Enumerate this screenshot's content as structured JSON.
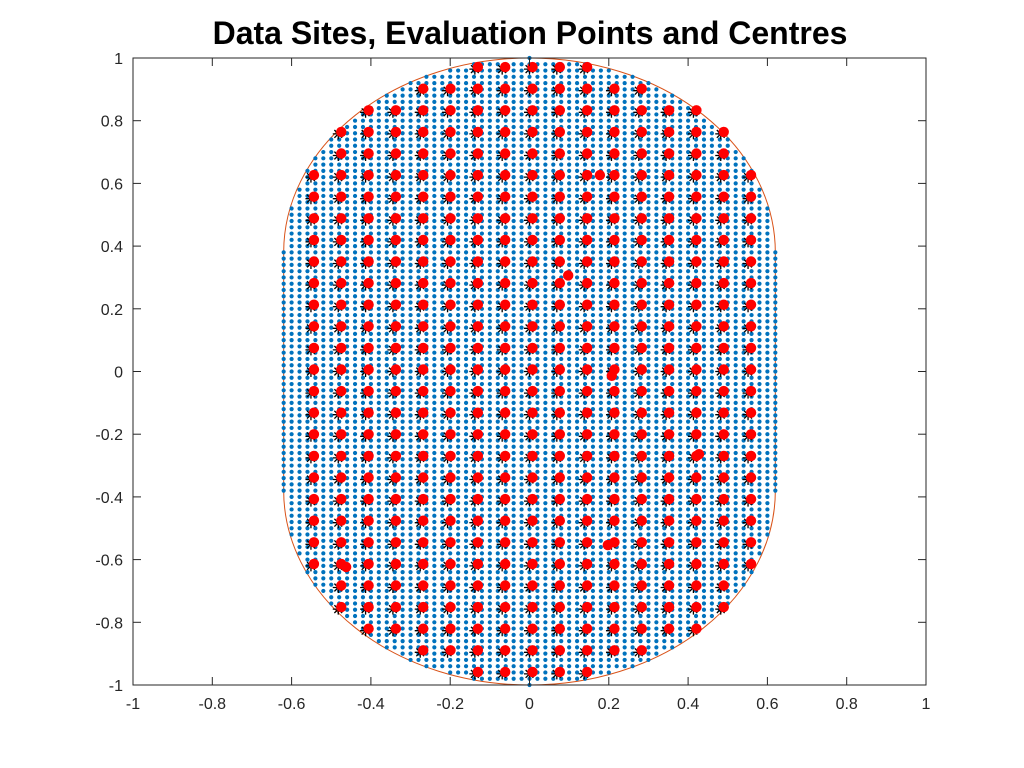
{
  "chart_data": {
    "type": "scatter",
    "title": "Data Sites, Evaluation Points and Centres",
    "xlabel": "",
    "ylabel": "",
    "xlim": [
      -1,
      1
    ],
    "ylim": [
      -1,
      1
    ],
    "x_ticks": [
      "-1",
      "-0.8",
      "-0.6",
      "-0.4",
      "-0.2",
      "0",
      "0.2",
      "0.4",
      "0.6",
      "0.8",
      "1"
    ],
    "y_ticks": [
      "1",
      "0.8",
      "0.6",
      "0.4",
      "0.2",
      "0",
      "-0.2",
      "-0.4",
      "-0.6",
      "-0.8",
      "-1"
    ],
    "grid": false,
    "domain_boundary": {
      "shape": "stadium",
      "half_width": 0.62,
      "rect_half_height": 0.38,
      "cap_radius": 0.62,
      "color": "#D95319"
    },
    "series": [
      {
        "marker": "dot",
        "color": "#0072BD",
        "grid_spacing": 0.02,
        "fills_domain": true
      },
      {
        "marker": "asterisk",
        "color": "#000000",
        "grid_spacing": 0.0689,
        "fills_domain": true
      },
      {
        "marker": "filled-circle",
        "color": "#FF0000",
        "grid_spacing": 0.0689,
        "fills_domain": true,
        "extra_points": [
          [
            0.17,
            0.62
          ],
          [
            0.09,
            0.3
          ],
          [
            0.2,
            -0.02
          ],
          [
            0.42,
            -0.27
          ],
          [
            0.19,
            -0.56
          ],
          [
            -0.47,
            -0.63
          ]
        ]
      }
    ]
  }
}
